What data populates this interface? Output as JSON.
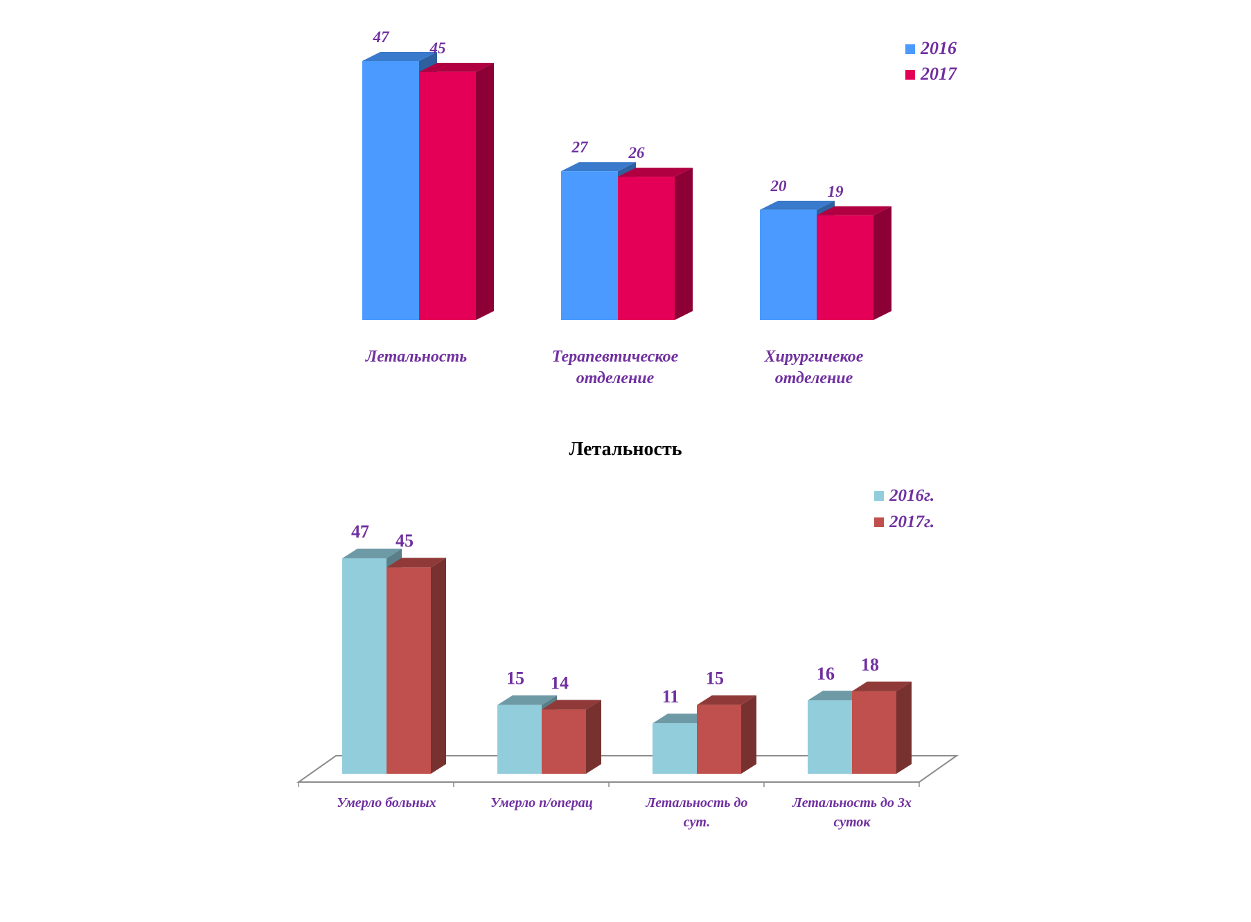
{
  "chart_data": [
    {
      "type": "bar",
      "title": "",
      "categories": [
        "Летальность",
        "Терапевтическое отделение",
        "Хирургичекое отделение"
      ],
      "category_lines": [
        [
          "Летальность"
        ],
        [
          "Терапевтическое",
          "отделение"
        ],
        [
          "Хирургичекое",
          "отделение"
        ]
      ],
      "series": [
        {
          "name": "2016",
          "values": [
            47,
            27,
            20
          ],
          "color": "#4a9aff"
        },
        {
          "name": "2017",
          "values": [
            45,
            26,
            19
          ],
          "color": "#e40056"
        }
      ],
      "ylim": [
        0,
        50
      ],
      "grid": false,
      "legend": "top-right",
      "style": "3d-column"
    },
    {
      "type": "bar",
      "title": "Летальность",
      "categories": [
        "Умерло больных",
        "Умерло п/операц",
        "Летальность до сут.",
        "Летальность до 3х суток"
      ],
      "category_lines": [
        [
          "Умерло больных"
        ],
        [
          "Умерло п/операц"
        ],
        [
          "Летальность до",
          "сут."
        ],
        [
          "Летальность до 3х",
          "суток"
        ]
      ],
      "series": [
        {
          "name": "2016г.",
          "values": [
            47,
            15,
            11,
            16
          ],
          "color": "#92cddc"
        },
        {
          "name": "2017г.",
          "values": [
            45,
            14,
            15,
            18
          ],
          "color": "#c0504d"
        }
      ],
      "ylim": [
        0,
        50
      ],
      "grid": false,
      "legend": "top-right",
      "style": "3d-column-with-floor"
    }
  ]
}
